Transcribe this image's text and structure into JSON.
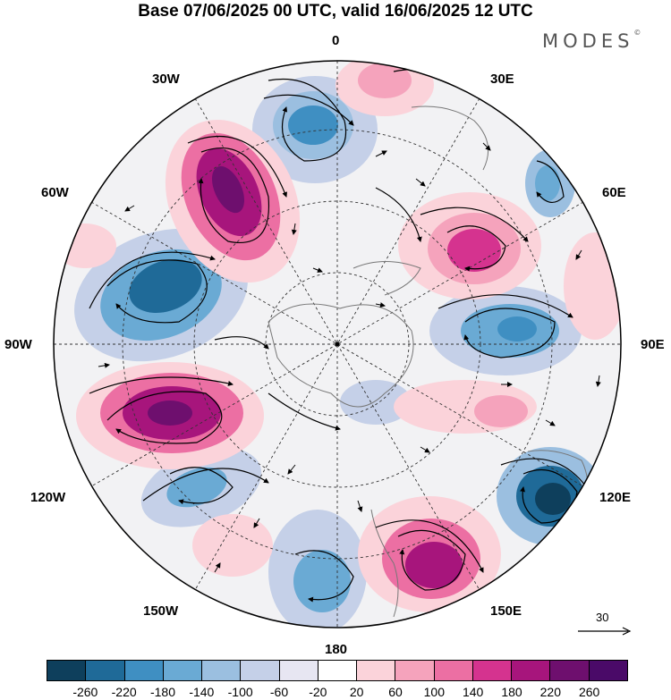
{
  "title": "Base 07/06/2025 00 UTC, valid 16/06/2025 12 UTC",
  "brand": "MODES",
  "brand_mark": "©",
  "longitude_labels": {
    "top": "0",
    "top_right": "30E",
    "right_upper": "60E",
    "right": "90E",
    "right_lower": "120E",
    "bottom_right": "150E",
    "bottom": "180",
    "bottom_left": "150W",
    "left_lower": "120W",
    "left": "90W",
    "left_upper": "60W",
    "top_left": "30W"
  },
  "vector_reference": {
    "label": "30"
  },
  "colorbar": {
    "ticks": [
      "-260",
      "-220",
      "-180",
      "-140",
      "-100",
      "-60",
      "-20",
      "20",
      "60",
      "100",
      "140",
      "180",
      "220",
      "260"
    ],
    "colors": [
      "#0e3f5c",
      "#1f6a98",
      "#3f8fc2",
      "#6aaad4",
      "#9bbfe0",
      "#c5d0e8",
      "#e7e6f2",
      "#ffffff",
      "#fbd3da",
      "#f5a3bc",
      "#ec6fa3",
      "#d5338f",
      "#a7157c",
      "#6e0f6e",
      "#4a0a68"
    ]
  },
  "colors": {
    "outline": "#000000",
    "land_fill": "#efefef",
    "coast": "#888888"
  }
}
